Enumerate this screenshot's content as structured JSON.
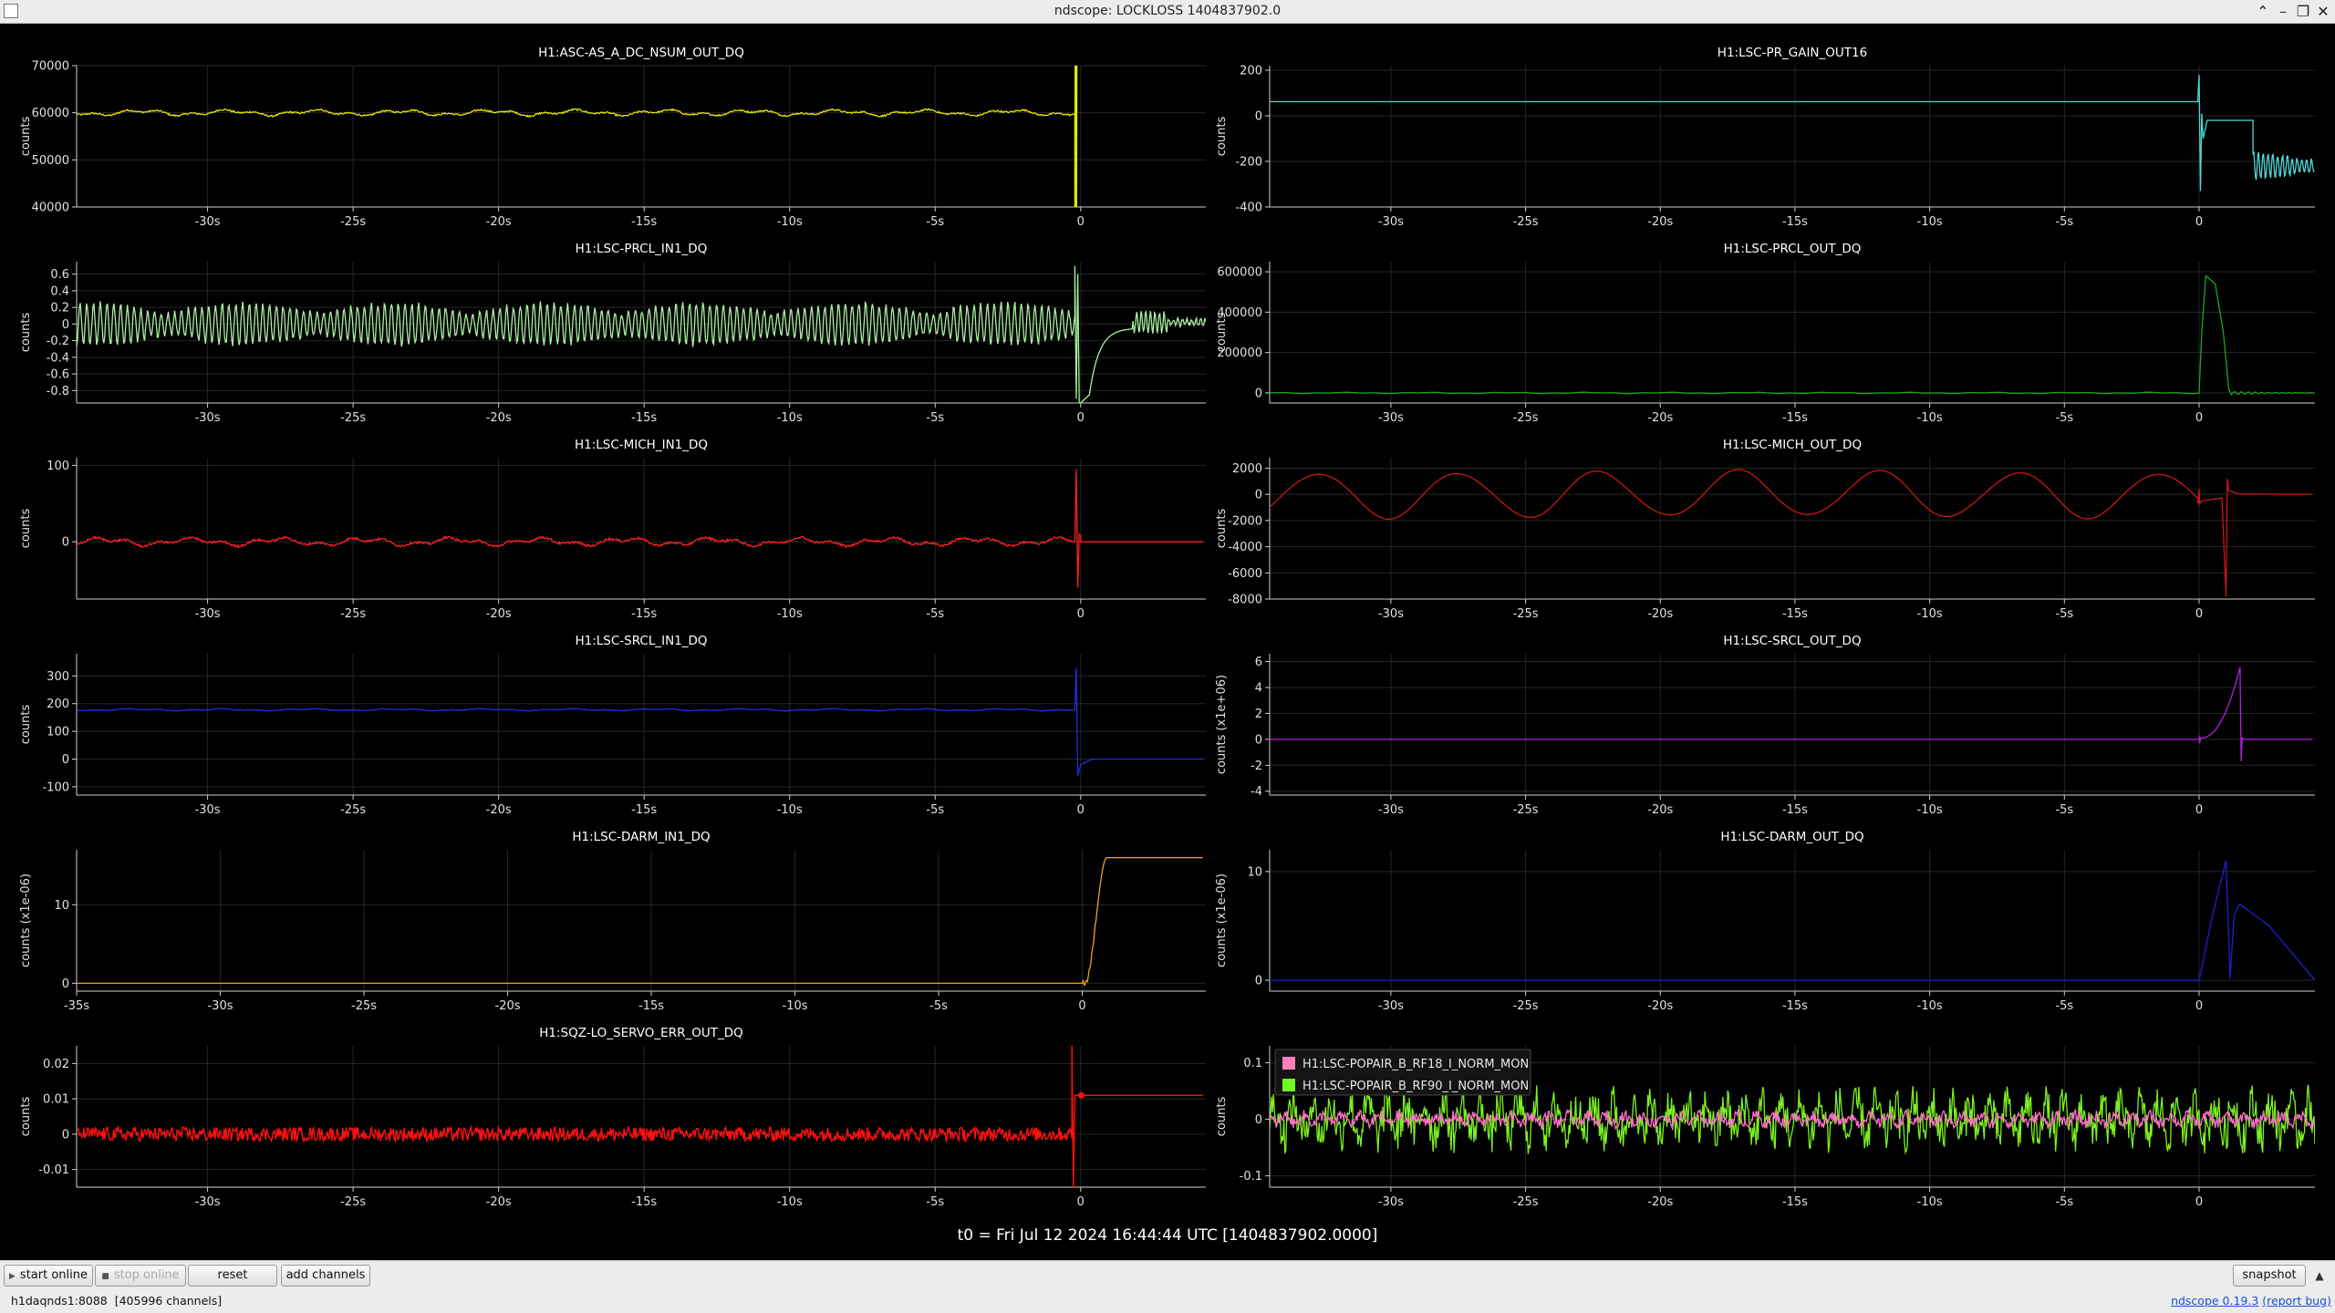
{
  "window": {
    "title": "ndscope: LOCKLOSS 1404837902.0",
    "controls": [
      "⌃",
      "–",
      "❐",
      "✕"
    ]
  },
  "t0_label": "t0 = Fri Jul 12 2024 16:44:44 UTC [1404837902.0000]",
  "toolbar": {
    "start_online": "start online",
    "stop_online": "stop online",
    "reset": "reset",
    "add_channels": "add channels",
    "snapshot": "snapshot"
  },
  "status": {
    "server": "h1daqnds1:8088",
    "channels": "[405996 channels]",
    "version_link": "ndscope 0.19.3",
    "report_bug": "(report bug)"
  },
  "chart_data": [
    {
      "type": "line",
      "title": "H1:ASC-AS_A_DC_NSUM_OUT_DQ",
      "ylabel": "counts",
      "xlim": [
        -34.5,
        4.3
      ],
      "ylim": [
        40000,
        70000
      ],
      "yticks": [
        40000,
        50000,
        60000,
        70000
      ],
      "yticklabels": [
        "40000",
        "50000",
        "60000",
        "70000"
      ],
      "xticks": [
        -30,
        -25,
        -20,
        -15,
        -10,
        -5,
        0
      ],
      "xticklabels": [
        "-30s",
        "-25s",
        "-20s",
        "-15s",
        "-10s",
        "-5s",
        "0"
      ],
      "series": [
        {
          "color": "#e6e600",
          "baseline": 60000,
          "noise": 700,
          "wave": "slow",
          "event": {
            "t": -0.2,
            "kind": "spike",
            "lo": 40000,
            "hi": 70000
          }
        }
      ]
    },
    {
      "type": "line",
      "title": "H1:LSC-PR_GAIN_OUT16",
      "ylabel": "counts",
      "xlim": [
        -34.5,
        4.3
      ],
      "ylim": [
        -400,
        220
      ],
      "yticks": [
        -400,
        -200,
        0,
        200
      ],
      "yticklabels": [
        "-400",
        "-200",
        "0",
        "200"
      ],
      "xticks": [
        -30,
        -25,
        -20,
        -15,
        -10,
        -5,
        0
      ],
      "xticklabels": [
        "-30s",
        "-25s",
        "-20s",
        "-15s",
        "-10s",
        "-5s",
        "0"
      ],
      "series": [
        {
          "color": "#4fd6d6",
          "baseline": 62,
          "noise": 0,
          "wave": "flat",
          "event": {
            "t": 0,
            "kind": "prgain"
          }
        }
      ]
    },
    {
      "type": "line",
      "title": "H1:LSC-PRCL_IN1_DQ",
      "ylabel": "counts",
      "xlim": [
        -34.5,
        4.3
      ],
      "ylim": [
        -0.95,
        0.75
      ],
      "yticks": [
        -0.8,
        -0.6,
        -0.4,
        -0.2,
        0,
        0.2,
        0.4,
        0.6
      ],
      "yticklabels": [
        "-0.8",
        "-0.6",
        "-0.4",
        "-0.2",
        "0",
        "0.2",
        "0.4",
        "0.6"
      ],
      "xticks": [
        -30,
        -25,
        -20,
        -15,
        -10,
        -5,
        0
      ],
      "xticklabels": [
        "-30s",
        "-25s",
        "-20s",
        "-15s",
        "-10s",
        "-5s",
        "0"
      ],
      "series": [
        {
          "color": "#a8f0a0",
          "baseline": 0,
          "noise": 0.25,
          "wave": "osc",
          "event": {
            "t": -0.2,
            "kind": "prcl_in"
          }
        }
      ]
    },
    {
      "type": "line",
      "title": "H1:LSC-PRCL_OUT_DQ",
      "ylabel": "counts",
      "xlim": [
        -34.5,
        4.3
      ],
      "ylim": [
        -50000,
        650000
      ],
      "yticks": [
        0,
        200000,
        400000,
        600000
      ],
      "yticklabels": [
        "0",
        "200000",
        "400000",
        "600000"
      ],
      "xticks": [
        -30,
        -25,
        -20,
        -15,
        -10,
        -5,
        0
      ],
      "xticklabels": [
        "-30s",
        "-25s",
        "-20s",
        "-15s",
        "-10s",
        "-5s",
        "0"
      ],
      "series": [
        {
          "color": "#1fa51f",
          "baseline": 0,
          "noise": 3000,
          "wave": "slow",
          "event": {
            "t": 0,
            "kind": "prcl_out"
          }
        }
      ]
    },
    {
      "type": "line",
      "title": "H1:LSC-MICH_IN1_DQ",
      "ylabel": "counts",
      "xlim": [
        -34.5,
        4.3
      ],
      "ylim": [
        -75,
        110
      ],
      "yticks": [
        0,
        100
      ],
      "yticklabels": [
        "0",
        "100"
      ],
      "xticks": [
        -30,
        -25,
        -20,
        -15,
        -10,
        -5,
        0
      ],
      "xticklabels": [
        "-30s",
        "-25s",
        "-20s",
        "-15s",
        "-10s",
        "-5s",
        "0"
      ],
      "series": [
        {
          "color": "#ff2020",
          "baseline": 0,
          "noise": 6,
          "wave": "slow",
          "event": {
            "t": -0.2,
            "kind": "mich_in"
          }
        }
      ]
    },
    {
      "type": "line",
      "title": "H1:LSC-MICH_OUT_DQ",
      "ylabel": "counts",
      "xlim": [
        -34.5,
        4.3
      ],
      "ylim": [
        -8000,
        2800
      ],
      "yticks": [
        -8000,
        -6000,
        -4000,
        -2000,
        0,
        2000
      ],
      "yticklabels": [
        "-8000",
        "-6000",
        "-4000",
        "-2000",
        "0",
        "2000"
      ],
      "xticks": [
        -30,
        -25,
        -20,
        -15,
        -10,
        -5,
        0
      ],
      "xticklabels": [
        "-30s",
        "-25s",
        "-20s",
        "-15s",
        "-10s",
        "-5s",
        "0"
      ],
      "series": [
        {
          "color": "#c81818",
          "baseline": 0,
          "noise": 0,
          "wave": "sine2000",
          "event": {
            "t": 0,
            "kind": "mich_out"
          }
        }
      ]
    },
    {
      "type": "line",
      "title": "H1:LSC-SRCL_IN1_DQ",
      "ylabel": "counts",
      "xlim": [
        -34.5,
        4.3
      ],
      "ylim": [
        -130,
        380
      ],
      "yticks": [
        -100,
        0,
        100,
        200,
        300
      ],
      "yticklabels": [
        "-100",
        "0",
        "100",
        "200",
        "300"
      ],
      "xticks": [
        -30,
        -25,
        -20,
        -15,
        -10,
        -5,
        0
      ],
      "xticklabels": [
        "-30s",
        "-25s",
        "-20s",
        "-15s",
        "-10s",
        "-5s",
        "0"
      ],
      "series": [
        {
          "color": "#2030e0",
          "baseline": 178,
          "noise": 4,
          "wave": "slow",
          "event": {
            "t": -0.2,
            "kind": "srcl_in"
          }
        }
      ]
    },
    {
      "type": "line",
      "title": "H1:LSC-SRCL_OUT_DQ",
      "ylabel": "counts (x1e+06)",
      "xlim": [
        -34.5,
        4.3
      ],
      "ylim": [
        -4.3,
        6.6
      ],
      "yticks": [
        -4,
        -2,
        0,
        2,
        4,
        6
      ],
      "yticklabels": [
        "-4",
        "-2",
        "0",
        "2",
        "4",
        "6"
      ],
      "xticks": [
        -30,
        -25,
        -20,
        -15,
        -10,
        -5,
        0
      ],
      "xticklabels": [
        "-30s",
        "-25s",
        "-20s",
        "-15s",
        "-10s",
        "-5s",
        "0"
      ],
      "series": [
        {
          "color": "#b020d8",
          "baseline": 0,
          "noise": 0,
          "wave": "flat",
          "event": {
            "t": 0,
            "kind": "srcl_out"
          }
        }
      ]
    },
    {
      "type": "line",
      "title": "H1:LSC-DARM_IN1_DQ",
      "ylabel": "counts (x1e-06)",
      "xlim": [
        -35,
        4.3
      ],
      "ylim": [
        -1,
        17
      ],
      "yticks": [
        0,
        10
      ],
      "yticklabels": [
        "0",
        "10"
      ],
      "xticks": [
        -35,
        -30,
        -25,
        -20,
        -15,
        -10,
        -5,
        0
      ],
      "xticklabels": [
        "-35s",
        "-30s",
        "-25s",
        "-20s",
        "-15s",
        "-10s",
        "-5s",
        "0"
      ],
      "series": [
        {
          "color": "#f0a020",
          "baseline": 0,
          "noise": 0,
          "wave": "flat",
          "event": {
            "t": 0,
            "kind": "darm_in"
          }
        }
      ]
    },
    {
      "type": "line",
      "title": "H1:LSC-DARM_OUT_DQ",
      "ylabel": "counts (x1e-06)",
      "xlim": [
        -34.5,
        4.3
      ],
      "ylim": [
        -1,
        12
      ],
      "yticks": [
        0,
        10
      ],
      "yticklabels": [
        "0",
        "10"
      ],
      "xticks": [
        -30,
        -25,
        -20,
        -15,
        -10,
        -5,
        0
      ],
      "xticklabels": [
        "-30s",
        "-25s",
        "-20s",
        "-15s",
        "-10s",
        "-5s",
        "0"
      ],
      "series": [
        {
          "color": "#2020d0",
          "baseline": 0,
          "noise": 0,
          "wave": "flat",
          "event": {
            "t": 0,
            "kind": "darm_out"
          }
        }
      ]
    },
    {
      "type": "line",
      "title": "H1:SQZ-LO_SERVO_ERR_OUT_DQ",
      "ylabel": "counts",
      "xlim": [
        -34.5,
        4.3
      ],
      "ylim": [
        -0.015,
        0.025
      ],
      "yticks": [
        -0.01,
        0,
        0.01,
        0.02
      ],
      "yticklabels": [
        "-0.01",
        "0",
        "0.01",
        "0.02"
      ],
      "xticks": [
        -30,
        -25,
        -20,
        -15,
        -10,
        -5,
        0
      ],
      "xticklabels": [
        "-30s",
        "-25s",
        "-20s",
        "-15s",
        "-10s",
        "-5s",
        "0"
      ],
      "series": [
        {
          "color": "#ff1010",
          "baseline": 0,
          "noise": 0.002,
          "wave": "band",
          "event": {
            "t": -0.3,
            "kind": "sqz"
          }
        }
      ]
    },
    {
      "type": "line",
      "title": "",
      "ylabel": "counts",
      "xlim": [
        -34.5,
        4.3
      ],
      "ylim": [
        -0.12,
        0.13
      ],
      "yticks": [
        -0.1,
        0,
        0.1
      ],
      "yticklabels": [
        "-0.1",
        "0",
        "0.1"
      ],
      "xticks": [
        -30,
        -25,
        -20,
        -15,
        -10,
        -5,
        0
      ],
      "xticklabels": [
        "-30s",
        "-25s",
        "-20s",
        "-15s",
        "-10s",
        "-5s",
        "0"
      ],
      "legend": {
        "placement": "top-left",
        "entries": [
          {
            "name": "H1:LSC-POPAIR_B_RF18_I_NORM_MON",
            "color": "#ff80c0"
          },
          {
            "name": "H1:LSC-POPAIR_B_RF90_I_NORM_MON",
            "color": "#70ff20"
          }
        ]
      },
      "series": [
        {
          "name": "H1:LSC-POPAIR_B_RF90_I_NORM_MON",
          "color": "#7cf020",
          "baseline": 0,
          "noise": 0.045,
          "wave": "noise",
          "event": null
        },
        {
          "name": "H1:LSC-POPAIR_B_RF18_I_NORM_MON",
          "color": "#ff70c8",
          "baseline": 0,
          "noise": 0.012,
          "wave": "noise",
          "event": null
        }
      ]
    }
  ]
}
